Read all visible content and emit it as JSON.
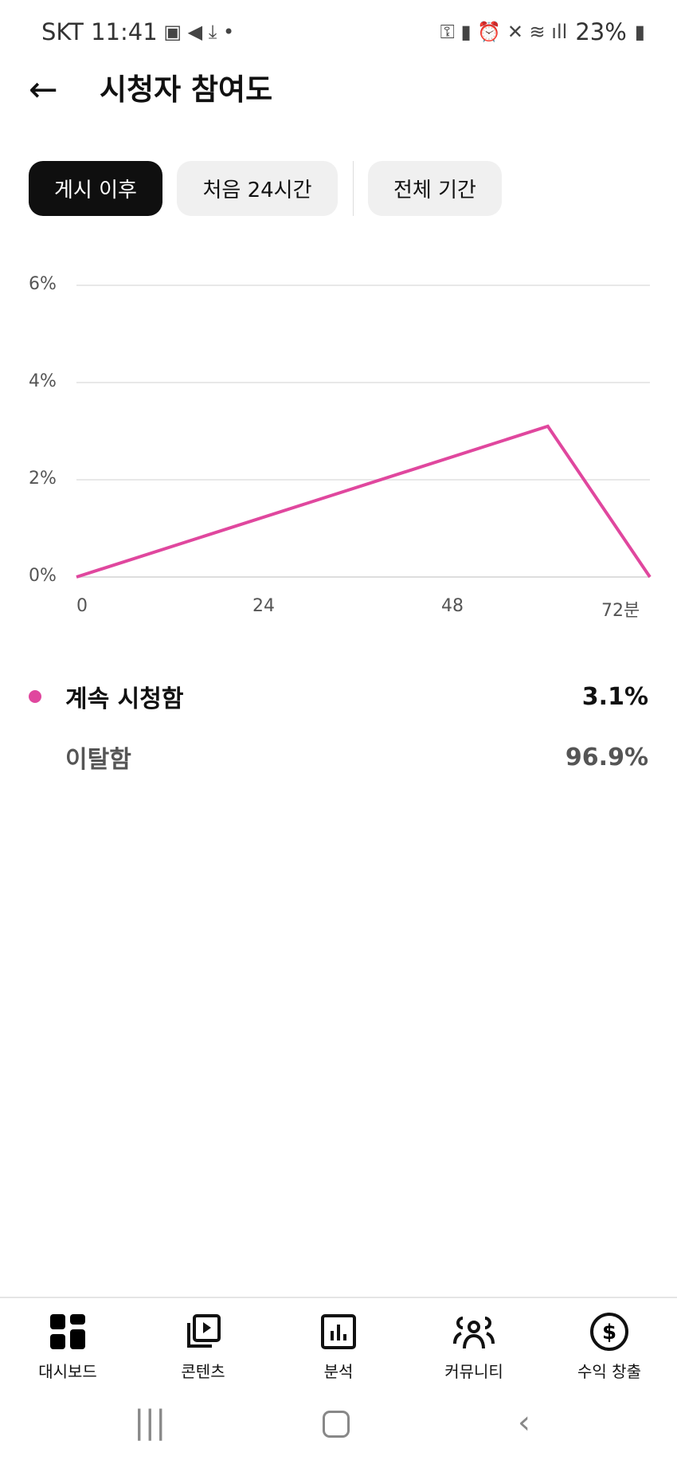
{
  "status_bar": {
    "carrier": "SKT",
    "time": "11:41",
    "battery": "23%"
  },
  "header": {
    "title": "시청자 참여도"
  },
  "tabs": [
    {
      "label": "게시 이후",
      "selected": true
    },
    {
      "label": "처음 24시간",
      "selected": false
    },
    {
      "label": "전체 기간",
      "selected": false
    }
  ],
  "chart_data": {
    "type": "line",
    "y_ticks": [
      "6%",
      "4%",
      "2%",
      "0%"
    ],
    "x_ticks": [
      "0",
      "24",
      "48",
      "72분"
    ],
    "ylim": [
      0,
      6
    ],
    "xlim": [
      0,
      73
    ],
    "grid": true,
    "color": "#e0479e",
    "series": [
      {
        "name": "계속 시청함",
        "points": [
          [
            0,
            0
          ],
          [
            60,
            3.1
          ],
          [
            73,
            0
          ]
        ]
      }
    ]
  },
  "legend": [
    {
      "label": "계속 시청함",
      "value": "3.1%",
      "color": "#e0479e"
    },
    {
      "label": "이탈함",
      "value": "96.9%"
    }
  ],
  "bottom_nav": [
    {
      "label": "대시보드",
      "icon": "dashboard-icon"
    },
    {
      "label": "콘텐츠",
      "icon": "content-icon"
    },
    {
      "label": "분석",
      "icon": "analytics-icon"
    },
    {
      "label": "커뮤니티",
      "icon": "community-icon"
    },
    {
      "label": "수익 창출",
      "icon": "monetization-icon"
    }
  ]
}
